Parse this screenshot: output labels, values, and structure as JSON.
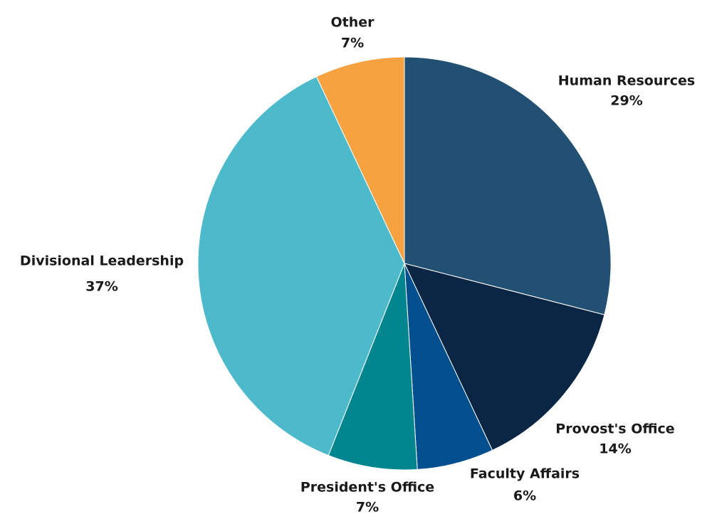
{
  "chart_data": {
    "type": "pie",
    "categories": [
      "Human Resources",
      "Provost's Office",
      "Faculty Affairs",
      "President's Office",
      "Divisional Leadership",
      "Other"
    ],
    "values": [
      29,
      14,
      6,
      7,
      37,
      7
    ],
    "value_labels": [
      "29%",
      "14%",
      "6%",
      "7%",
      "37%",
      "7%"
    ],
    "colors": [
      "#215073",
      "#0b2545",
      "#014f8f",
      "#01868f",
      "#4dbacc",
      "#f7a240"
    ]
  }
}
